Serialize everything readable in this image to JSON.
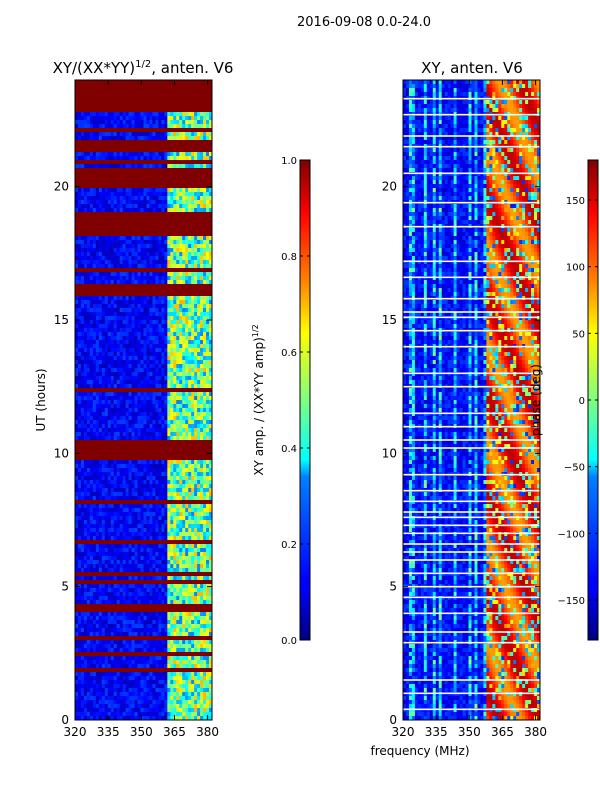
{
  "suptitle": "2016-09-08 0.0-24.0",
  "xlabel_shared": "frequency (MHz)",
  "chart_data": [
    {
      "type": "heatmap",
      "id": "amp",
      "title_main": "XY/(XX*YY)",
      "title_sup": "1/2",
      "title_tail": ", anten. V6",
      "ylabel": "UT (hours)",
      "xlim": [
        320,
        382
      ],
      "ylim": [
        0,
        24
      ],
      "xticks": [
        320,
        335,
        350,
        365,
        380
      ],
      "yticks": [
        0,
        5,
        10,
        15,
        20
      ],
      "colorbar": {
        "label_main": "XY amp. / (XX*YY amp)",
        "label_sup": "1/2",
        "range": [
          0.0,
          1.0
        ],
        "ticks": [
          "0.0",
          "0.2",
          "0.4",
          "0.6",
          "0.8",
          "1.0"
        ],
        "tick_values": [
          0.0,
          0.2,
          0.4,
          0.6,
          0.8,
          1.0
        ]
      },
      "saturated_bands_hours": [
        [
          23.3,
          24.0
        ],
        [
          22.8,
          23.1
        ],
        [
          21.3,
          21.7
        ],
        [
          19.9,
          20.5
        ],
        [
          18.1,
          19.0
        ],
        [
          15.9,
          16.3
        ],
        [
          12.3,
          12.5
        ],
        [
          9.7,
          10.3
        ],
        [
          5.1,
          5.3
        ],
        [
          4.1,
          4.3
        ],
        [
          3.0,
          3.2
        ],
        [
          1.8,
          2.0
        ]
      ],
      "bright_band_mhz": [
        362,
        382
      ]
    },
    {
      "type": "heatmap",
      "id": "phase",
      "title": "XY, anten. V6",
      "xlim": [
        320,
        382
      ],
      "ylim": [
        0,
        24
      ],
      "xticks": [
        320,
        335,
        350,
        365,
        380
      ],
      "yticks": [
        0,
        5,
        10,
        15,
        20
      ],
      "colorbar": {
        "label": "phase (deg)",
        "range": [
          -180,
          180
        ],
        "ticks": [
          "−150",
          "−100",
          "−50",
          "0",
          "50",
          "100",
          "150"
        ],
        "tick_values": [
          -150,
          -100,
          -50,
          0,
          50,
          100,
          150
        ]
      },
      "flagged_lines_hours": [
        0.4,
        1.0,
        1.5,
        2.9,
        3.3,
        4.0,
        4.6,
        5.0,
        5.5,
        6.0,
        6.3,
        6.6,
        7.0,
        7.3,
        7.6,
        7.8,
        8.2,
        8.6,
        9.2,
        10.2,
        10.5,
        11.0,
        11.5,
        12.5,
        13.0,
        14.0,
        14.6,
        15.1,
        15.3,
        15.8,
        16.6,
        17.2,
        18.5,
        19.4,
        20.5,
        21.5,
        21.9,
        22.7,
        23.3
      ]
    }
  ]
}
